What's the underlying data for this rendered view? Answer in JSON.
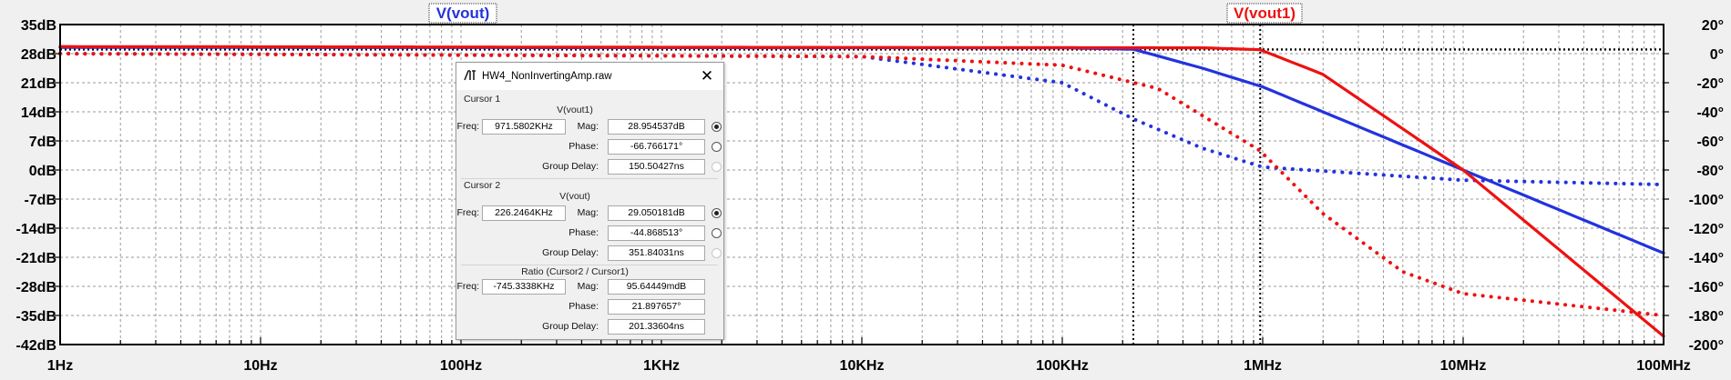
{
  "colors": {
    "vout": "#2233dd",
    "vout1": "#ee1111",
    "grid": "#9a9a9a",
    "cursor": "#000000"
  },
  "plot": {
    "trace_labels": {
      "vout": "V(vout)",
      "vout1": "V(vout1)"
    },
    "left_axis": [
      "35dB",
      "28dB",
      "21dB",
      "14dB",
      "7dB",
      "0dB",
      "-7dB",
      "-14dB",
      "-21dB",
      "-28dB",
      "-35dB",
      "-42dB"
    ],
    "right_axis": [
      "20°",
      "0°",
      "-20°",
      "-40°",
      "-60°",
      "-80°",
      "-100°",
      "-120°",
      "-140°",
      "-160°",
      "-180°",
      "-200°"
    ],
    "x_axis": [
      "1Hz",
      "10Hz",
      "100Hz",
      "1KHz",
      "10KHz",
      "100KHz",
      "1MHz",
      "10MHz",
      "100MHz"
    ]
  },
  "chart_data": {
    "type": "line",
    "x_scale": "log",
    "xlim": [
      "1Hz",
      "100MHz"
    ],
    "ylim_left_db": [
      -42,
      35
    ],
    "ylim_right_deg": [
      -200,
      20
    ],
    "grid": true,
    "series": [
      {
        "name": "V(vout)",
        "quantity": "magnitude",
        "axis": "left",
        "color": "#2233dd",
        "style": "solid",
        "points": [
          [
            1,
            29.5
          ],
          [
            100000,
            29.4
          ],
          [
            226246,
            29.05
          ],
          [
            500000,
            24.5
          ],
          [
            1000000,
            20
          ],
          [
            10000000,
            0
          ],
          [
            100000000,
            -20
          ]
        ]
      },
      {
        "name": "V(vout)",
        "quantity": "phase",
        "axis": "right",
        "color": "#2233dd",
        "style": "dotted",
        "points": [
          [
            1,
            0
          ],
          [
            10000,
            -2
          ],
          [
            100000,
            -20
          ],
          [
            226246,
            -44.9
          ],
          [
            500000,
            -65
          ],
          [
            1000000,
            -78
          ],
          [
            10000000,
            -87
          ],
          [
            100000000,
            -90
          ]
        ]
      },
      {
        "name": "V(vout1)",
        "quantity": "magnitude",
        "axis": "left",
        "color": "#ee1111",
        "style": "solid",
        "points": [
          [
            1,
            29.7
          ],
          [
            500000,
            29.4
          ],
          [
            971580,
            28.95
          ],
          [
            2000000,
            23
          ],
          [
            10000000,
            0
          ],
          [
            100000000,
            -40
          ]
        ]
      },
      {
        "name": "V(vout1)",
        "quantity": "phase",
        "axis": "right",
        "color": "#ee1111",
        "style": "dotted",
        "points": [
          [
            1,
            0
          ],
          [
            10000,
            -2
          ],
          [
            100000,
            -8
          ],
          [
            300000,
            -24
          ],
          [
            971580,
            -66.8
          ],
          [
            2000000,
            -110
          ],
          [
            5000000,
            -150
          ],
          [
            10000000,
            -165
          ],
          [
            100000000,
            -180
          ]
        ]
      }
    ],
    "cursors": [
      {
        "name": "Cursor 1",
        "freq": 971580.2,
        "mag_db": 28.954537
      },
      {
        "name": "Cursor 2",
        "freq": 226246.4,
        "mag_db": 29.050181
      }
    ]
  },
  "dialog": {
    "title": "HW4_NonInvertingAmp.raw",
    "cursor1": {
      "header": "Cursor 1",
      "signal": "V(vout1)",
      "freq_label": "Freq:",
      "freq": "971.5802KHz",
      "mag_label": "Mag:",
      "mag": "28.954537dB",
      "phase_label": "Phase:",
      "phase": "-66.766171°",
      "gd_label": "Group Delay:",
      "gd": "150.50427ns"
    },
    "cursor2": {
      "header": "Cursor 2",
      "signal": "V(vout)",
      "freq_label": "Freq:",
      "freq": "226.2464KHz",
      "mag_label": "Mag:",
      "mag": "29.050181dB",
      "phase_label": "Phase:",
      "phase": "-44.868513°",
      "gd_label": "Group Delay:",
      "gd": "351.84031ns"
    },
    "ratio": {
      "header": "Ratio (Cursor2 / Cursor1)",
      "freq_label": "Freq:",
      "freq": "-745.3338KHz",
      "mag_label": "Mag:",
      "mag": "95.64449mdB",
      "phase_label": "Phase:",
      "phase": "21.897657°",
      "gd_label": "Group Delay:",
      "gd": "201.33604ns"
    }
  }
}
